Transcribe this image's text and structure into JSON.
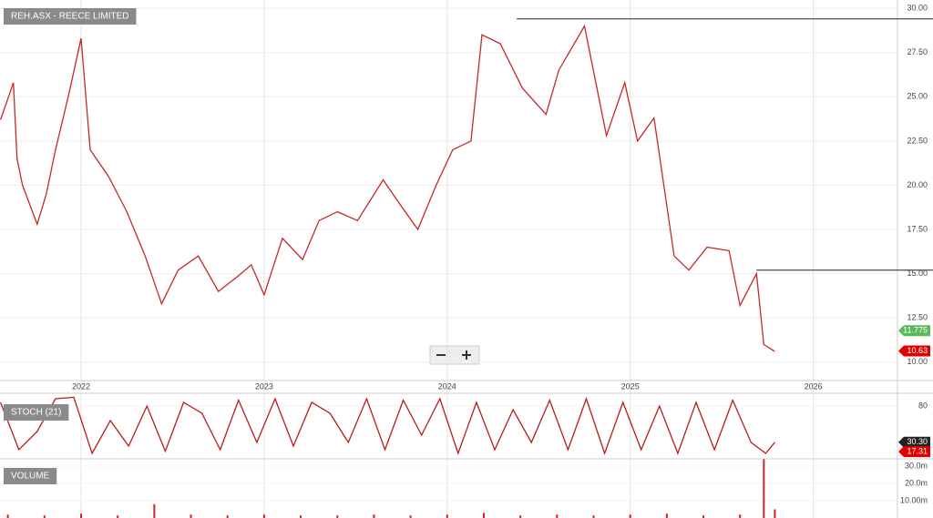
{
  "chart_data": [
    {
      "type": "line",
      "title": "REH.ASX - REECE LIMITED",
      "xlim": [
        2021.557,
        2026.46
      ],
      "xticks": [
        2022,
        2023,
        2024,
        2025,
        2026
      ],
      "ylim": [
        8.96,
        30.47
      ],
      "yticks": [
        {
          "value": 10,
          "label": "10.00"
        },
        {
          "value": 12.5,
          "label": "12.50"
        },
        {
          "value": 15,
          "label": "15.00"
        },
        {
          "value": 17.5,
          "label": "17.50"
        },
        {
          "value": 20,
          "label": "20.00"
        },
        {
          "value": 22.5,
          "label": "22.50"
        },
        {
          "value": 25,
          "label": "25.00"
        },
        {
          "value": 27.5,
          "label": "27.50"
        },
        {
          "value": 30,
          "label": "30.00"
        }
      ],
      "grid": true,
      "series": [
        {
          "color": "#c62828",
          "x": [
            2021.56,
            2021.63,
            2021.65,
            2021.68,
            2021.76,
            2021.81,
            2021.86,
            2021.93,
            2022.0,
            2022.05,
            2022.15,
            2022.25,
            2022.35,
            2022.44,
            2022.53,
            2022.64,
            2022.75,
            2022.85,
            2022.93,
            2023.0,
            2023.1,
            2023.21,
            2023.3,
            2023.4,
            2023.51,
            2023.65,
            2023.75,
            2023.84,
            2023.94,
            2024.03,
            2024.13,
            2024.19,
            2024.29,
            2024.41,
            2024.54,
            2024.61,
            2024.75,
            2024.87,
            2024.97,
            2025.04,
            2025.13,
            2025.24,
            2025.32,
            2025.42,
            2025.54,
            2025.6,
            2025.69,
            2025.73,
            2025.79
          ],
          "values": [
            23.7,
            25.8,
            21.5,
            20,
            17.8,
            19.5,
            22,
            25,
            28.3,
            22,
            20.5,
            18.5,
            16,
            13.3,
            15.2,
            16,
            14,
            14.8,
            15.5,
            13.8,
            17,
            15.8,
            18,
            18.5,
            18,
            20.3,
            18.8,
            17.5,
            20,
            22,
            22.5,
            28.5,
            28,
            25.5,
            24,
            26.5,
            29,
            22.8,
            25.8,
            22.5,
            23.8,
            16,
            15.2,
            16.5,
            16.3,
            13.2,
            15,
            11,
            10.6
          ]
        }
      ],
      "levels": [
        {
          "value": 29.4,
          "x_start": 2024.38
        },
        {
          "value": 15.2,
          "x_start": 2025.69
        }
      ],
      "tags": [
        {
          "value": 11.775,
          "color": "#5cb85c"
        },
        {
          "value": 10.63,
          "color": "#e00000"
        }
      ]
    },
    {
      "type": "line",
      "title": "STOCH (21)",
      "xlim": [
        2021.557,
        2026.46
      ],
      "ylim": [
        8.75,
        96.25
      ],
      "yticks": [
        80
      ],
      "series": [
        {
          "color": "#b71c1c",
          "x": [
            2021.56,
            2021.66,
            2021.76,
            2021.86,
            2021.96,
            2022.06,
            2022.16,
            2022.26,
            2022.36,
            2022.46,
            2022.56,
            2022.66,
            2022.76,
            2022.86,
            2022.96,
            2023.06,
            2023.16,
            2023.26,
            2023.36,
            2023.46,
            2023.56,
            2023.66,
            2023.76,
            2023.86,
            2023.96,
            2024.06,
            2024.16,
            2024.26,
            2024.36,
            2024.46,
            2024.56,
            2024.66,
            2024.76,
            2024.86,
            2024.96,
            2025.06,
            2025.16,
            2025.26,
            2025.36,
            2025.46,
            2025.56,
            2025.66,
            2025.74,
            2025.79
          ],
          "values": [
            85,
            20,
            45,
            90,
            92,
            15,
            60,
            25,
            80,
            18,
            85,
            70,
            20,
            88,
            30,
            90,
            25,
            85,
            70,
            30,
            90,
            20,
            88,
            40,
            90,
            15,
            85,
            20,
            75,
            30,
            88,
            20,
            90,
            15,
            85,
            20,
            80,
            15,
            85,
            20,
            88,
            30,
            15,
            30.3
          ]
        }
      ],
      "tags": [
        {
          "value": 30.3,
          "label": "30.30",
          "color": "#222"
        },
        {
          "value": 17.31,
          "color": "#e00000"
        }
      ]
    },
    {
      "type": "bar",
      "title": "VOLUME",
      "xlim": [
        2021.557,
        2026.46
      ],
      "ylim": [
        0,
        33.7
      ],
      "yticks": [
        {
          "value": 10,
          "label": "10.00m"
        },
        {
          "value": 20,
          "label": "20.0m"
        },
        {
          "value": 30,
          "label": "30.0m"
        }
      ],
      "color": "#c62828",
      "x": [
        2021.6,
        2021.8,
        2022.0,
        2022.2,
        2022.4,
        2022.6,
        2022.8,
        2023.0,
        2023.2,
        2023.4,
        2023.6,
        2023.8,
        2024.0,
        2024.2,
        2024.4,
        2024.6,
        2024.8,
        2025.0,
        2025.2,
        2025.4,
        2025.6,
        2025.73,
        2025.79
      ],
      "values": [
        2,
        1.5,
        2.5,
        1.5,
        8,
        2,
        1.5,
        2,
        1.5,
        1.5,
        2,
        1.5,
        2,
        3,
        1.5,
        2,
        1.5,
        2,
        2.5,
        1.5,
        2,
        34,
        5
      ]
    }
  ]
}
